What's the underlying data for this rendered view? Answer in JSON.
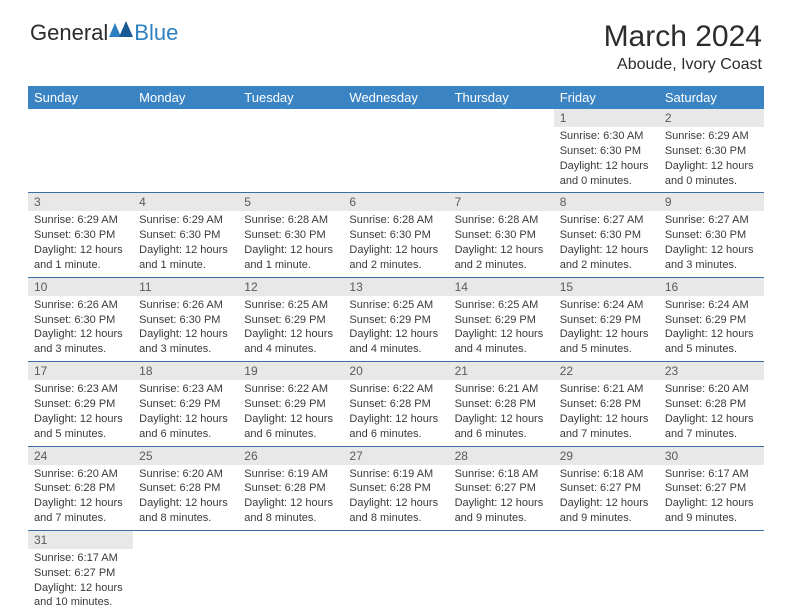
{
  "logo": {
    "general": "General",
    "blue": "Blue"
  },
  "title": "March 2024",
  "subtitle": "Aboude, Ivory Coast",
  "weekdays": [
    "Sunday",
    "Monday",
    "Tuesday",
    "Wednesday",
    "Thursday",
    "Friday",
    "Saturday"
  ],
  "colors": {
    "header_bg": "#3b84c4",
    "header_text": "#ffffff",
    "daynum_bg": "#e8e8e8",
    "daynum_text": "#5a5a5a",
    "body_text": "#3a3a3a",
    "rule": "#3b6fa3",
    "logo_blue": "#2c7fc0"
  },
  "first_weekday_index": 5,
  "days": [
    {
      "n": 1,
      "sunrise": "6:30 AM",
      "sunset": "6:30 PM",
      "daylight": "12 hours and 0 minutes."
    },
    {
      "n": 2,
      "sunrise": "6:29 AM",
      "sunset": "6:30 PM",
      "daylight": "12 hours and 0 minutes."
    },
    {
      "n": 3,
      "sunrise": "6:29 AM",
      "sunset": "6:30 PM",
      "daylight": "12 hours and 1 minute."
    },
    {
      "n": 4,
      "sunrise": "6:29 AM",
      "sunset": "6:30 PM",
      "daylight": "12 hours and 1 minute."
    },
    {
      "n": 5,
      "sunrise": "6:28 AM",
      "sunset": "6:30 PM",
      "daylight": "12 hours and 1 minute."
    },
    {
      "n": 6,
      "sunrise": "6:28 AM",
      "sunset": "6:30 PM",
      "daylight": "12 hours and 2 minutes."
    },
    {
      "n": 7,
      "sunrise": "6:28 AM",
      "sunset": "6:30 PM",
      "daylight": "12 hours and 2 minutes."
    },
    {
      "n": 8,
      "sunrise": "6:27 AM",
      "sunset": "6:30 PM",
      "daylight": "12 hours and 2 minutes."
    },
    {
      "n": 9,
      "sunrise": "6:27 AM",
      "sunset": "6:30 PM",
      "daylight": "12 hours and 3 minutes."
    },
    {
      "n": 10,
      "sunrise": "6:26 AM",
      "sunset": "6:30 PM",
      "daylight": "12 hours and 3 minutes."
    },
    {
      "n": 11,
      "sunrise": "6:26 AM",
      "sunset": "6:30 PM",
      "daylight": "12 hours and 3 minutes."
    },
    {
      "n": 12,
      "sunrise": "6:25 AM",
      "sunset": "6:29 PM",
      "daylight": "12 hours and 4 minutes."
    },
    {
      "n": 13,
      "sunrise": "6:25 AM",
      "sunset": "6:29 PM",
      "daylight": "12 hours and 4 minutes."
    },
    {
      "n": 14,
      "sunrise": "6:25 AM",
      "sunset": "6:29 PM",
      "daylight": "12 hours and 4 minutes."
    },
    {
      "n": 15,
      "sunrise": "6:24 AM",
      "sunset": "6:29 PM",
      "daylight": "12 hours and 5 minutes."
    },
    {
      "n": 16,
      "sunrise": "6:24 AM",
      "sunset": "6:29 PM",
      "daylight": "12 hours and 5 minutes."
    },
    {
      "n": 17,
      "sunrise": "6:23 AM",
      "sunset": "6:29 PM",
      "daylight": "12 hours and 5 minutes."
    },
    {
      "n": 18,
      "sunrise": "6:23 AM",
      "sunset": "6:29 PM",
      "daylight": "12 hours and 6 minutes."
    },
    {
      "n": 19,
      "sunrise": "6:22 AM",
      "sunset": "6:29 PM",
      "daylight": "12 hours and 6 minutes."
    },
    {
      "n": 20,
      "sunrise": "6:22 AM",
      "sunset": "6:28 PM",
      "daylight": "12 hours and 6 minutes."
    },
    {
      "n": 21,
      "sunrise": "6:21 AM",
      "sunset": "6:28 PM",
      "daylight": "12 hours and 6 minutes."
    },
    {
      "n": 22,
      "sunrise": "6:21 AM",
      "sunset": "6:28 PM",
      "daylight": "12 hours and 7 minutes."
    },
    {
      "n": 23,
      "sunrise": "6:20 AM",
      "sunset": "6:28 PM",
      "daylight": "12 hours and 7 minutes."
    },
    {
      "n": 24,
      "sunrise": "6:20 AM",
      "sunset": "6:28 PM",
      "daylight": "12 hours and 7 minutes."
    },
    {
      "n": 25,
      "sunrise": "6:20 AM",
      "sunset": "6:28 PM",
      "daylight": "12 hours and 8 minutes."
    },
    {
      "n": 26,
      "sunrise": "6:19 AM",
      "sunset": "6:28 PM",
      "daylight": "12 hours and 8 minutes."
    },
    {
      "n": 27,
      "sunrise": "6:19 AM",
      "sunset": "6:28 PM",
      "daylight": "12 hours and 8 minutes."
    },
    {
      "n": 28,
      "sunrise": "6:18 AM",
      "sunset": "6:27 PM",
      "daylight": "12 hours and 9 minutes."
    },
    {
      "n": 29,
      "sunrise": "6:18 AM",
      "sunset": "6:27 PM",
      "daylight": "12 hours and 9 minutes."
    },
    {
      "n": 30,
      "sunrise": "6:17 AM",
      "sunset": "6:27 PM",
      "daylight": "12 hours and 9 minutes."
    },
    {
      "n": 31,
      "sunrise": "6:17 AM",
      "sunset": "6:27 PM",
      "daylight": "12 hours and 10 minutes."
    }
  ],
  "labels": {
    "sunrise": "Sunrise:",
    "sunset": "Sunset:",
    "daylight": "Daylight:"
  }
}
